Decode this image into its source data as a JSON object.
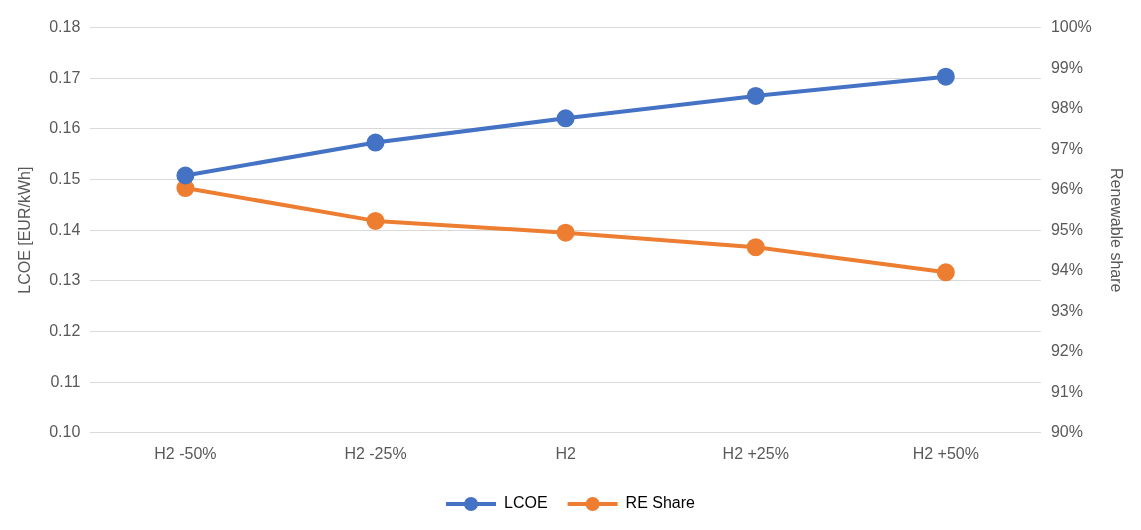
{
  "chart_data": {
    "type": "line",
    "categories": [
      "H2 -50%",
      "H2 -25%",
      "H2",
      "H2 +25%",
      "H2 +50%"
    ],
    "series": [
      {
        "name": "LCOE",
        "color": "#4472c4",
        "values": [
          0.1508,
          0.1573,
          0.1621,
          0.1665,
          0.1703
        ]
      },
      {
        "name": "RE Share",
        "color": "#ed7d31",
        "axis": "y2",
        "values": [
          96.04,
          95.23,
          94.94,
          94.58,
          93.96
        ]
      }
    ],
    "ylabel": "LCOE [EUR/kWh]",
    "y2label": "Renewable share",
    "ylim": [
      0.1,
      0.18
    ],
    "yticks": [
      {
        "value": 0.1,
        "label": "0.10"
      },
      {
        "value": 0.11,
        "label": "0.11"
      },
      {
        "value": 0.12,
        "label": "0.12"
      },
      {
        "value": 0.13,
        "label": "0.13"
      },
      {
        "value": 0.14,
        "label": "0.14"
      },
      {
        "value": 0.15,
        "label": "0.15"
      },
      {
        "value": 0.16,
        "label": "0.16"
      },
      {
        "value": 0.17,
        "label": "0.17"
      },
      {
        "value": 0.18,
        "label": "0.18"
      }
    ],
    "y2lim": [
      90,
      100
    ],
    "y2ticks": [
      {
        "value": 90,
        "label": "90%"
      },
      {
        "value": 91,
        "label": "91%"
      },
      {
        "value": 92,
        "label": "92%"
      },
      {
        "value": 93,
        "label": "93%"
      },
      {
        "value": 94,
        "label": "94%"
      },
      {
        "value": 95,
        "label": "95%"
      },
      {
        "value": 96,
        "label": "96%"
      },
      {
        "value": 97,
        "label": "97%"
      },
      {
        "value": 98,
        "label": "98%"
      },
      {
        "value": 99,
        "label": "99%"
      },
      {
        "value": 100,
        "label": "100%"
      }
    ],
    "grid": "y",
    "legend": "bottom",
    "marker": "circle",
    "line_style": "solid"
  }
}
